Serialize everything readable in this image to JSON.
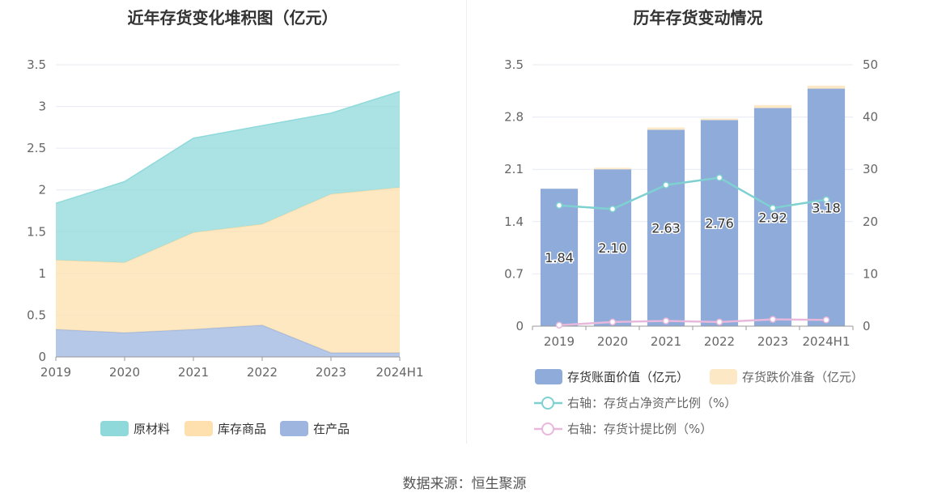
{
  "source_text": "数据来源：恒生聚源",
  "colors": {
    "raw": "#8fd9db",
    "stock": "#fde0ad",
    "wip": "#9db5df",
    "bar_book": "#8eabd9",
    "bar_reserve": "#fde8c6",
    "line_ratio": "#7fd1d1",
    "line_provision": "#e8b8dc",
    "grid": "#e6e9f2",
    "axis": "#999999"
  },
  "chart_data": [
    {
      "type": "area",
      "stacked": true,
      "title": "近年存货变化堆积图（亿元）",
      "categories": [
        "2019",
        "2020",
        "2021",
        "2022",
        "2023",
        "2024H1"
      ],
      "ylim": [
        0,
        3.5
      ],
      "yticks": [
        "0",
        "0.5",
        "1",
        "1.5",
        "2",
        "2.5",
        "3",
        "3.5"
      ],
      "series": [
        {
          "name": "在产品",
          "values": [
            0.33,
            0.29,
            0.33,
            0.38,
            0.05,
            0.05
          ]
        },
        {
          "name": "库存商品",
          "values": [
            0.83,
            0.84,
            1.16,
            1.21,
            1.9,
            1.98
          ]
        },
        {
          "name": "原材料",
          "values": [
            0.68,
            0.97,
            1.13,
            1.18,
            0.97,
            1.15
          ]
        }
      ],
      "legend": [
        "原材料",
        "库存商品",
        "在产品"
      ],
      "legend_position": "bottom"
    },
    {
      "type": "bar",
      "stacked": true,
      "title": "历年存货变动情况",
      "categories": [
        "2019",
        "2020",
        "2021",
        "2022",
        "2023",
        "2024H1"
      ],
      "ylim": [
        0,
        3.5
      ],
      "yticks": [
        "0",
        "0.7",
        "1.4",
        "2.1",
        "2.8",
        "3.5"
      ],
      "y2lim": [
        0,
        50
      ],
      "y2ticks": [
        "0",
        "10",
        "20",
        "30",
        "40",
        "50"
      ],
      "series": [
        {
          "name": "存货账面价值（亿元）",
          "values": [
            1.84,
            2.1,
            2.63,
            2.76,
            2.92,
            3.18
          ],
          "labels": [
            "1.84",
            "2.10",
            "2.63",
            "2.76",
            "2.92",
            "3.18"
          ]
        },
        {
          "name": "存货跌价准备（亿元）",
          "values": [
            0.0,
            0.02,
            0.03,
            0.02,
            0.04,
            0.04
          ]
        }
      ],
      "line_series": [
        {
          "name": "右轴：存货占净资产比例（%）",
          "axis": "right",
          "values": [
            23.1,
            22.4,
            27.0,
            28.4,
            22.6,
            24.2
          ]
        },
        {
          "name": "右轴：存货计提比例（%）",
          "axis": "right",
          "values": [
            0.2,
            0.8,
            1.0,
            0.8,
            1.3,
            1.2
          ]
        }
      ],
      "legend_position": "bottom"
    }
  ]
}
